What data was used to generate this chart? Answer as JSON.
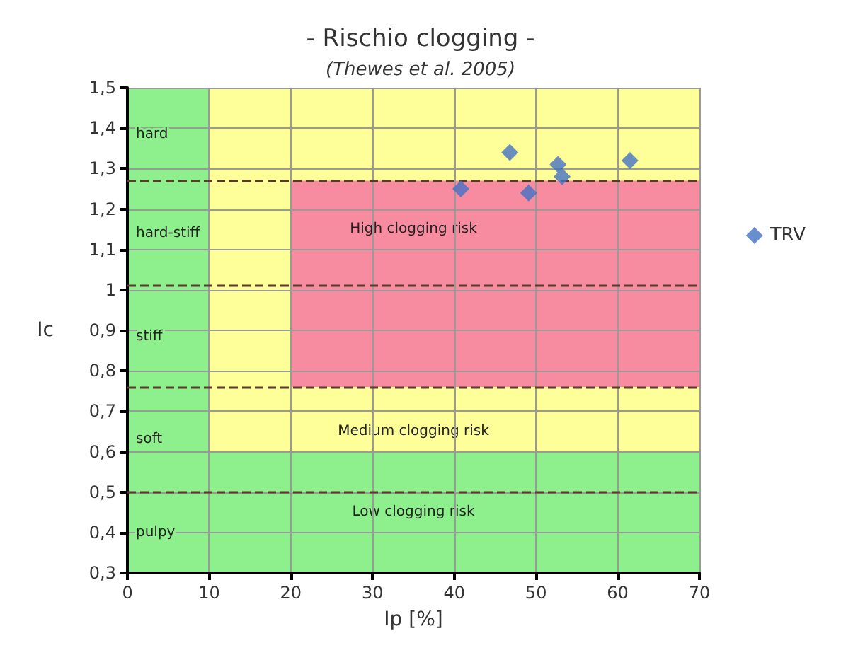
{
  "chart_data": {
    "type": "scatter",
    "title": "- Rischio clogging -",
    "subtitle": "(Thewes et al. 2005)",
    "xlabel": "Ip [%]",
    "ylabel": "Ic",
    "series": [
      {
        "name": "TRV",
        "color": "#4472c4",
        "x": [
          40.8,
          46.8,
          49.1,
          52.7,
          53.2,
          61.5
        ],
        "values": [
          1.25,
          1.34,
          1.24,
          1.31,
          1.28,
          1.32
        ]
      }
    ],
    "xlim": [
      0,
      70
    ],
    "xticks": [
      0,
      10,
      20,
      30,
      40,
      50,
      60,
      70
    ],
    "ylim": [
      0.3,
      1.5
    ],
    "yticks": [
      {
        "value": 0.3,
        "label": "0,3"
      },
      {
        "value": 0.4,
        "label": "0,4"
      },
      {
        "value": 0.5,
        "label": "0,5"
      },
      {
        "value": 0.6,
        "label": "0,6"
      },
      {
        "value": 0.7,
        "label": "0,7"
      },
      {
        "value": 0.8,
        "label": "0,8"
      },
      {
        "value": 0.9,
        "label": "0,9"
      },
      {
        "value": 1,
        "label": "1"
      },
      {
        "value": 1.1,
        "label": "1,1"
      },
      {
        "value": 1.2,
        "label": "1,2"
      },
      {
        "value": 1.3,
        "label": "1,3"
      },
      {
        "value": 1.4,
        "label": "1,4"
      },
      {
        "value": 1.5,
        "label": "1,5"
      }
    ],
    "bands": [
      {
        "axis": "y",
        "from": 0.76,
        "to": 1.5,
        "color": "#ffff99"
      },
      {
        "axis": "y",
        "from": 0.6,
        "to": 0.76,
        "color": "#ffff99",
        "label": "Medium clogging risk"
      },
      {
        "axis": "y",
        "from": 1.01,
        "to": 1.27,
        "color": "#f78ca0",
        "label": "High clogging risk"
      },
      {
        "axis": "y",
        "from": 0.76,
        "to": 1.01,
        "color": "#f78ca0"
      },
      {
        "axis": "x",
        "from": 0,
        "to": 20,
        "color": "#ffff99"
      },
      {
        "axis": "x",
        "from": 0,
        "to": 10,
        "color": "#8ef08c"
      },
      {
        "axis": "y",
        "from": 0.5,
        "to": 0.6,
        "color": "#8ef08c"
      },
      {
        "axis": "y",
        "from": 0.3,
        "to": 0.5,
        "color": "#8ef08c",
        "label": "Low clogging risk"
      }
    ],
    "annotations": [
      "hard",
      "hard-stiff",
      "stiff",
      "soft",
      "pulpy"
    ],
    "ref_lines": [
      {
        "axis": "y",
        "value": 1.27,
        "color": "#5a3a2a",
        "line_style": "dashed"
      },
      {
        "axis": "y",
        "value": 1.01,
        "color": "#5a3a2a",
        "line_style": "dashed"
      },
      {
        "axis": "y",
        "value": 0.76,
        "color": "#5a3a2a",
        "line_style": "dashed"
      },
      {
        "axis": "y",
        "value": 0.5,
        "color": "#5a3a2a",
        "line_style": "dashed"
      }
    ],
    "grid": true,
    "legend": "right",
    "marker": "diamond"
  }
}
